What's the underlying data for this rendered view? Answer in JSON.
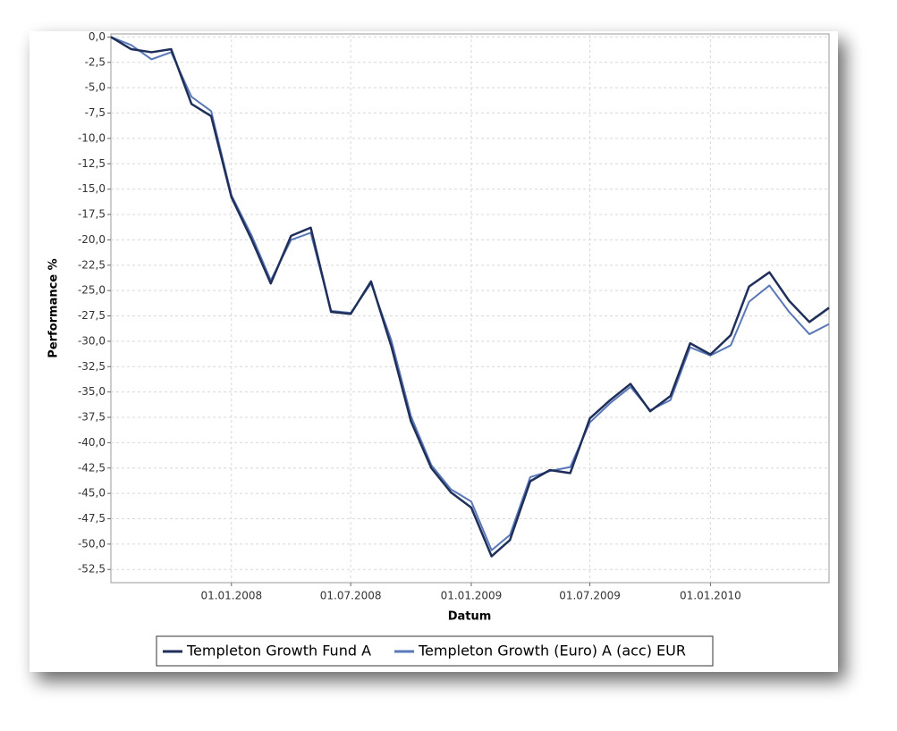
{
  "chart_data": {
    "type": "line",
    "x_label": "Datum",
    "y_label": "Performance %",
    "x": [
      "01.07.2007",
      "01.08.2007",
      "01.09.2007",
      "01.10.2007",
      "01.11.2007",
      "01.12.2007",
      "01.01.2008",
      "01.02.2008",
      "01.03.2008",
      "01.04.2008",
      "01.05.2008",
      "01.06.2008",
      "01.07.2008",
      "01.08.2008",
      "01.09.2008",
      "01.10.2008",
      "01.11.2008",
      "01.12.2008",
      "01.01.2009",
      "01.02.2009",
      "01.03.2009",
      "01.04.2009",
      "01.05.2009",
      "01.06.2009",
      "01.07.2009",
      "01.08.2009",
      "01.09.2009",
      "01.10.2009",
      "01.11.2009",
      "01.12.2009",
      "01.01.2010",
      "01.02.2010",
      "01.03.2010",
      "01.04.2010",
      "01.05.2010",
      "01.06.2010",
      "01.07.2010"
    ],
    "series": [
      {
        "name": "Templeton Growth Fund A",
        "color": "#1f2f5a",
        "values": [
          0,
          -1.2,
          -1.5,
          -1.2,
          -6.6,
          -7.8,
          -15.8,
          -20.0,
          -24.3,
          -19.6,
          -18.8,
          -27.1,
          -27.3,
          -24.1,
          -30.5,
          -37.9,
          -42.5,
          -44.9,
          -46.4,
          -51.2,
          -49.6,
          -43.8,
          -42.7,
          -43.0,
          -37.6,
          -35.8,
          -34.2,
          -36.9,
          -35.4,
          -30.2,
          -31.3,
          -29.4,
          -24.6,
          -23.2,
          -26.0,
          -28.1,
          -26.7
        ]
      },
      {
        "name": "Templeton Growth (Euro) A (acc) EUR",
        "color": "#5a78b8",
        "values": [
          0,
          -0.8,
          -2.2,
          -1.5,
          -5.9,
          -7.3,
          -15.6,
          -19.6,
          -24.0,
          -20.0,
          -19.3,
          -27.0,
          -27.2,
          -24.3,
          -29.9,
          -37.4,
          -42.2,
          -44.6,
          -45.8,
          -50.6,
          -49.1,
          -43.4,
          -42.8,
          -42.4,
          -38.0,
          -36.1,
          -34.5,
          -36.8,
          -35.8,
          -30.6,
          -31.4,
          -30.4,
          -26.1,
          -24.5,
          -27.1,
          -29.3,
          -28.3
        ]
      }
    ],
    "xlim": [
      "01.07.2007",
      "01.07.2010"
    ],
    "xticks": [
      "01.01.2008",
      "01.07.2008",
      "01.01.2009",
      "01.07.2009",
      "01.01.2010"
    ],
    "ylim": [
      -53.8,
      0.3
    ],
    "yticks": [
      {
        "value": 0,
        "label": "0,0"
      },
      {
        "value": -2.5,
        "label": "-2,5"
      },
      {
        "value": -5,
        "label": "-5,0"
      },
      {
        "value": -7.5,
        "label": "-7,5"
      },
      {
        "value": -10,
        "label": "-10,0"
      },
      {
        "value": -12.5,
        "label": "-12,5"
      },
      {
        "value": -15,
        "label": "-15,0"
      },
      {
        "value": -17.5,
        "label": "-17,5"
      },
      {
        "value": -20,
        "label": "-20,0"
      },
      {
        "value": -22.5,
        "label": "-22,5"
      },
      {
        "value": -25,
        "label": "-25,0"
      },
      {
        "value": -27.5,
        "label": "-27,5"
      },
      {
        "value": -30,
        "label": "-30,0"
      },
      {
        "value": -32.5,
        "label": "-32,5"
      },
      {
        "value": -35,
        "label": "-35,0"
      },
      {
        "value": -37.5,
        "label": "-37,5"
      },
      {
        "value": -40,
        "label": "-40,0"
      },
      {
        "value": -42.5,
        "label": "-42,5"
      },
      {
        "value": -45,
        "label": "-45,0"
      },
      {
        "value": -47.5,
        "label": "-47,5"
      },
      {
        "value": -50,
        "label": "-50,0"
      },
      {
        "value": -52.5,
        "label": "-52,5"
      }
    ],
    "grid": true,
    "legend": "bottom"
  }
}
